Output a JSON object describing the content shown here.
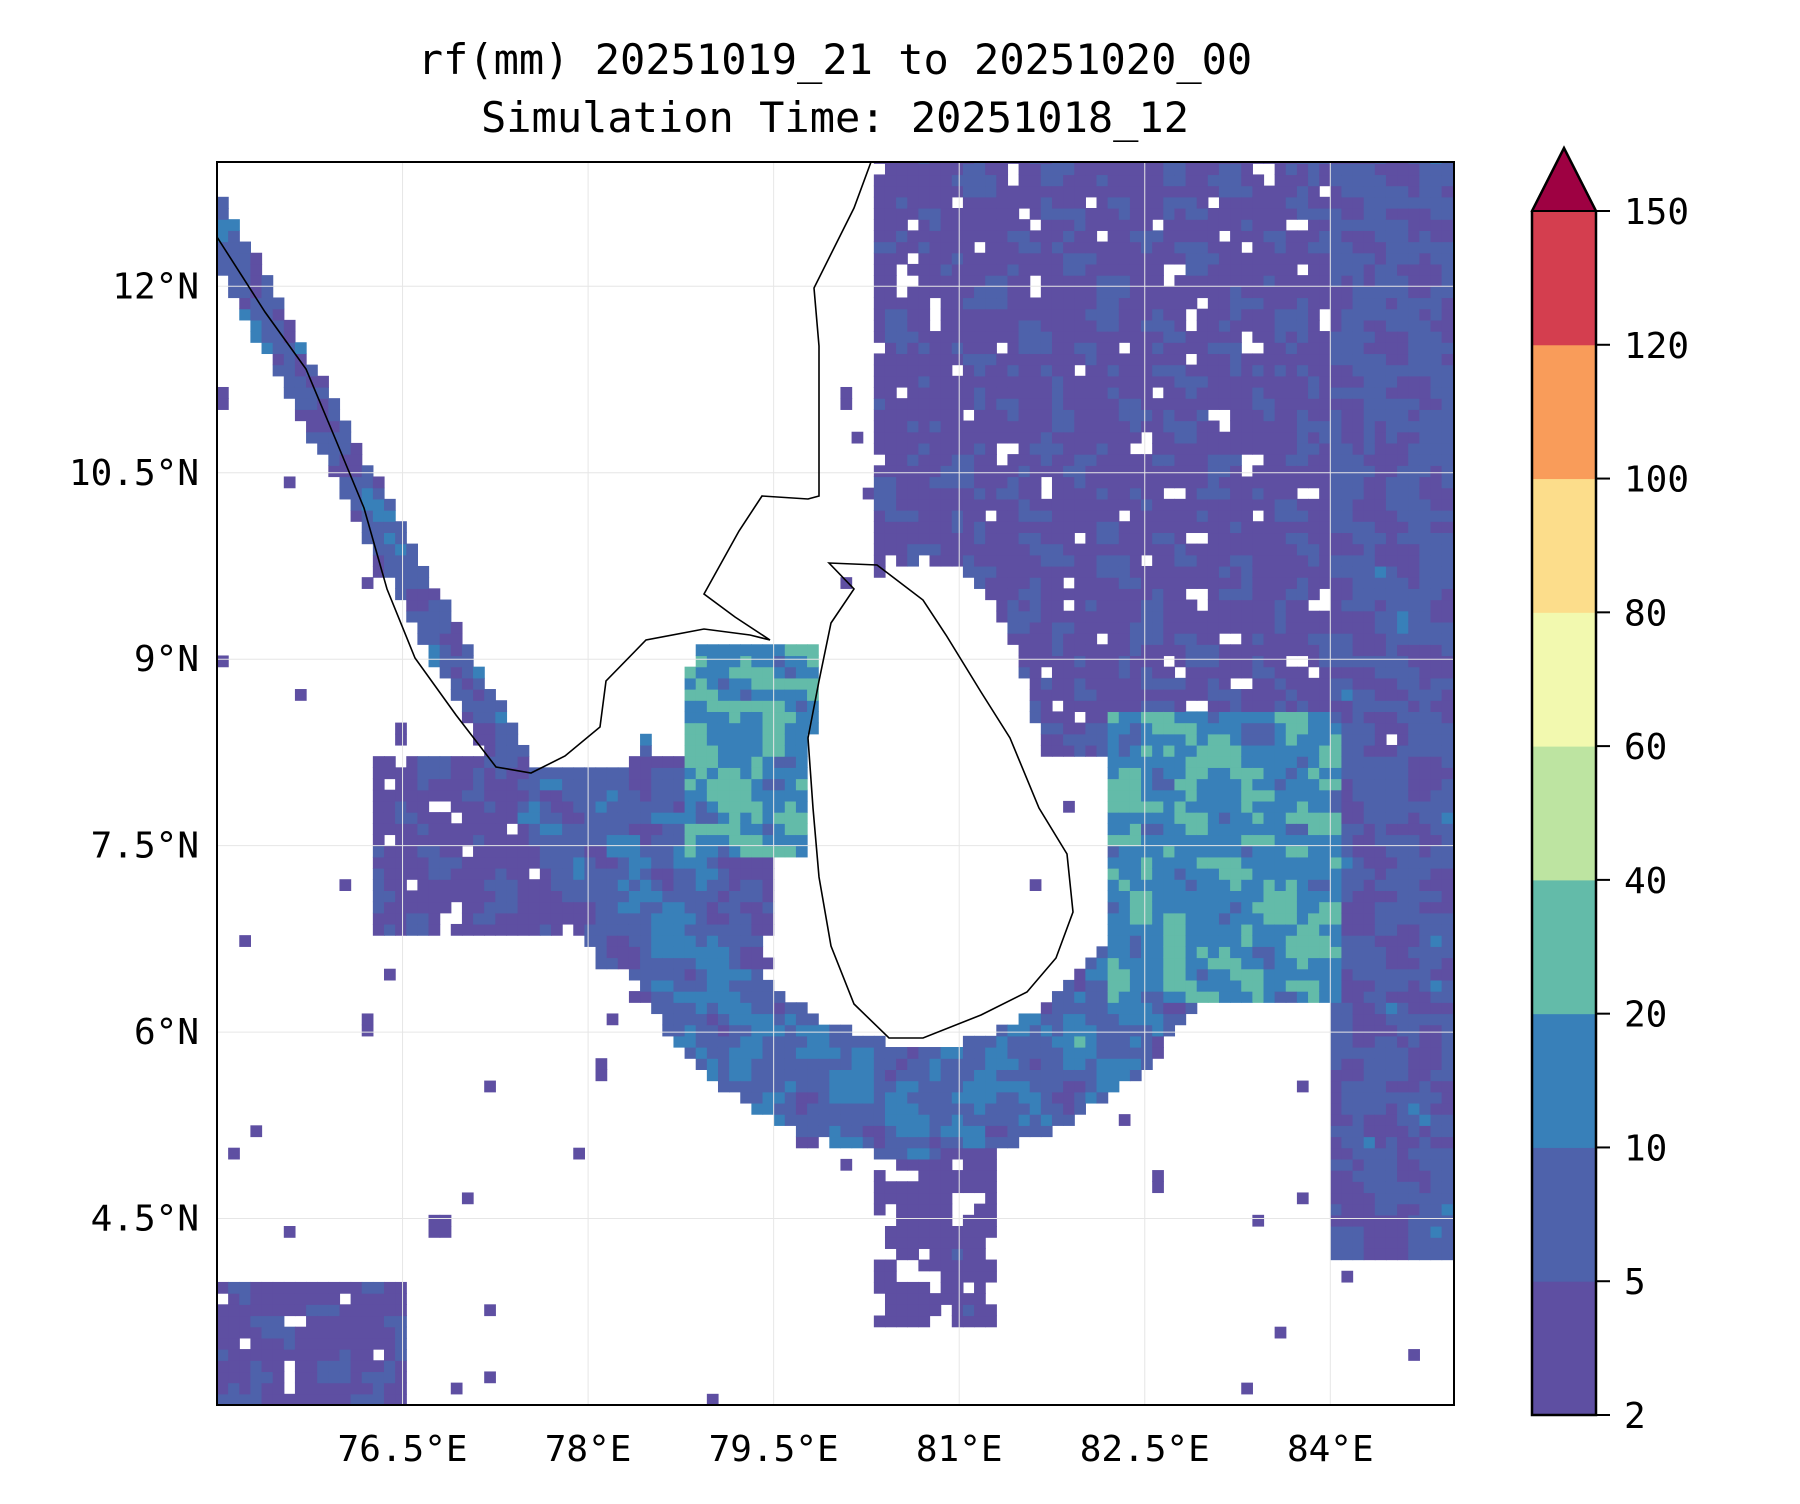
{
  "chart_data": {
    "type": "heatmap",
    "title": "rf(mm) 20251019_21 to 20251020_00",
    "subtitle": "Simulation Time: 20251018_12",
    "xlabel": "",
    "ylabel": "",
    "xlim": [
      75.0,
      85.0
    ],
    "ylim": [
      3.0,
      13.0
    ],
    "x_ticks": [
      76.5,
      78,
      79.5,
      81,
      82.5,
      84
    ],
    "x_tick_labels": [
      "76.5°E",
      "78°E",
      "79.5°E",
      "81°E",
      "82.5°E",
      "84°E"
    ],
    "y_ticks": [
      12,
      10.5,
      9,
      7.5,
      6,
      4.5
    ],
    "y_tick_labels": [
      "12°N",
      "10.5°N",
      "9°N",
      "7.5°N",
      "6°N",
      "4.5°N"
    ],
    "grid": true,
    "colorbar": {
      "levels": [
        2,
        5,
        10,
        20,
        40,
        60,
        80,
        100,
        120,
        150
      ],
      "tick_labels": [
        "2",
        "5",
        "10",
        "20",
        "40",
        "60",
        "80",
        "100",
        "120",
        "150"
      ],
      "colors": [
        "#5e4fa2",
        "#4e62ab",
        "#3880b9",
        "#63bba9",
        "#bde4a1",
        "#f2f9af",
        "#fcdd8b",
        "#f99c5a",
        "#d43e4f"
      ],
      "extend_color": "#9e0142",
      "extend": "max",
      "placement": "right"
    },
    "field_summary": "Rainfall contours (2–40 mm) around Sri Lanka; max ~20–40 mm in Gulf of Mannar and east of Sri Lanka (82.5–84°E, 6.5–8.5°N)"
  }
}
